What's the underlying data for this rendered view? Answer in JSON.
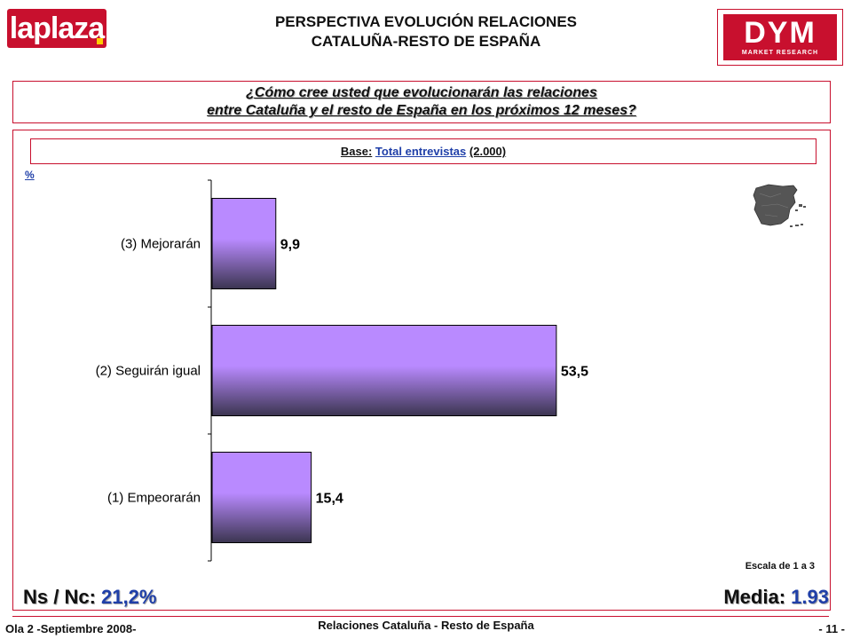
{
  "header": {
    "logo_left": "laplaza",
    "title_line1": "PERSPECTIVA EVOLUCIÓN RELACIONES",
    "title_line2": "CATALUÑA-RESTO DE ESPAÑA",
    "logo_right": "DYM",
    "logo_right_sub": "MARKET RESEARCH"
  },
  "question": {
    "line1": "¿Cómo cree usted que evolucionarán las relaciones",
    "line2": "entre Cataluña y el resto de España en los próximos 12 meses?"
  },
  "base": {
    "label": "Base:",
    "value": "Total entrevistas",
    "count": "(2.000)"
  },
  "chart_data": {
    "type": "bar",
    "orientation": "horizontal",
    "unit_label": "%",
    "categories": [
      "(3) Mejorarán",
      "(2) Seguirán igual",
      "(1) Empeorarán"
    ],
    "values": [
      9.9,
      53.5,
      15.4
    ],
    "value_labels": [
      "9,9",
      "53,5",
      "15,4"
    ],
    "xlim": [
      0,
      100
    ],
    "bar_color_light": "#b98aff",
    "bar_color_dark": "#3b3550",
    "legend": "none",
    "grid": false
  },
  "notes": {
    "scale": "Escala de 1 a 3",
    "nsnc_label": "Ns / Nc:",
    "nsnc_value": "21,2%",
    "media_label": "Media:",
    "media_value": "1.93"
  },
  "footer": {
    "left": "Ola 2 -Septiembre 2008-",
    "center": "Relaciones Cataluña - Resto de España",
    "right": "- 11 -"
  },
  "colors": {
    "frame": "#c8102e",
    "accent_blue": "#1f3fa8"
  }
}
